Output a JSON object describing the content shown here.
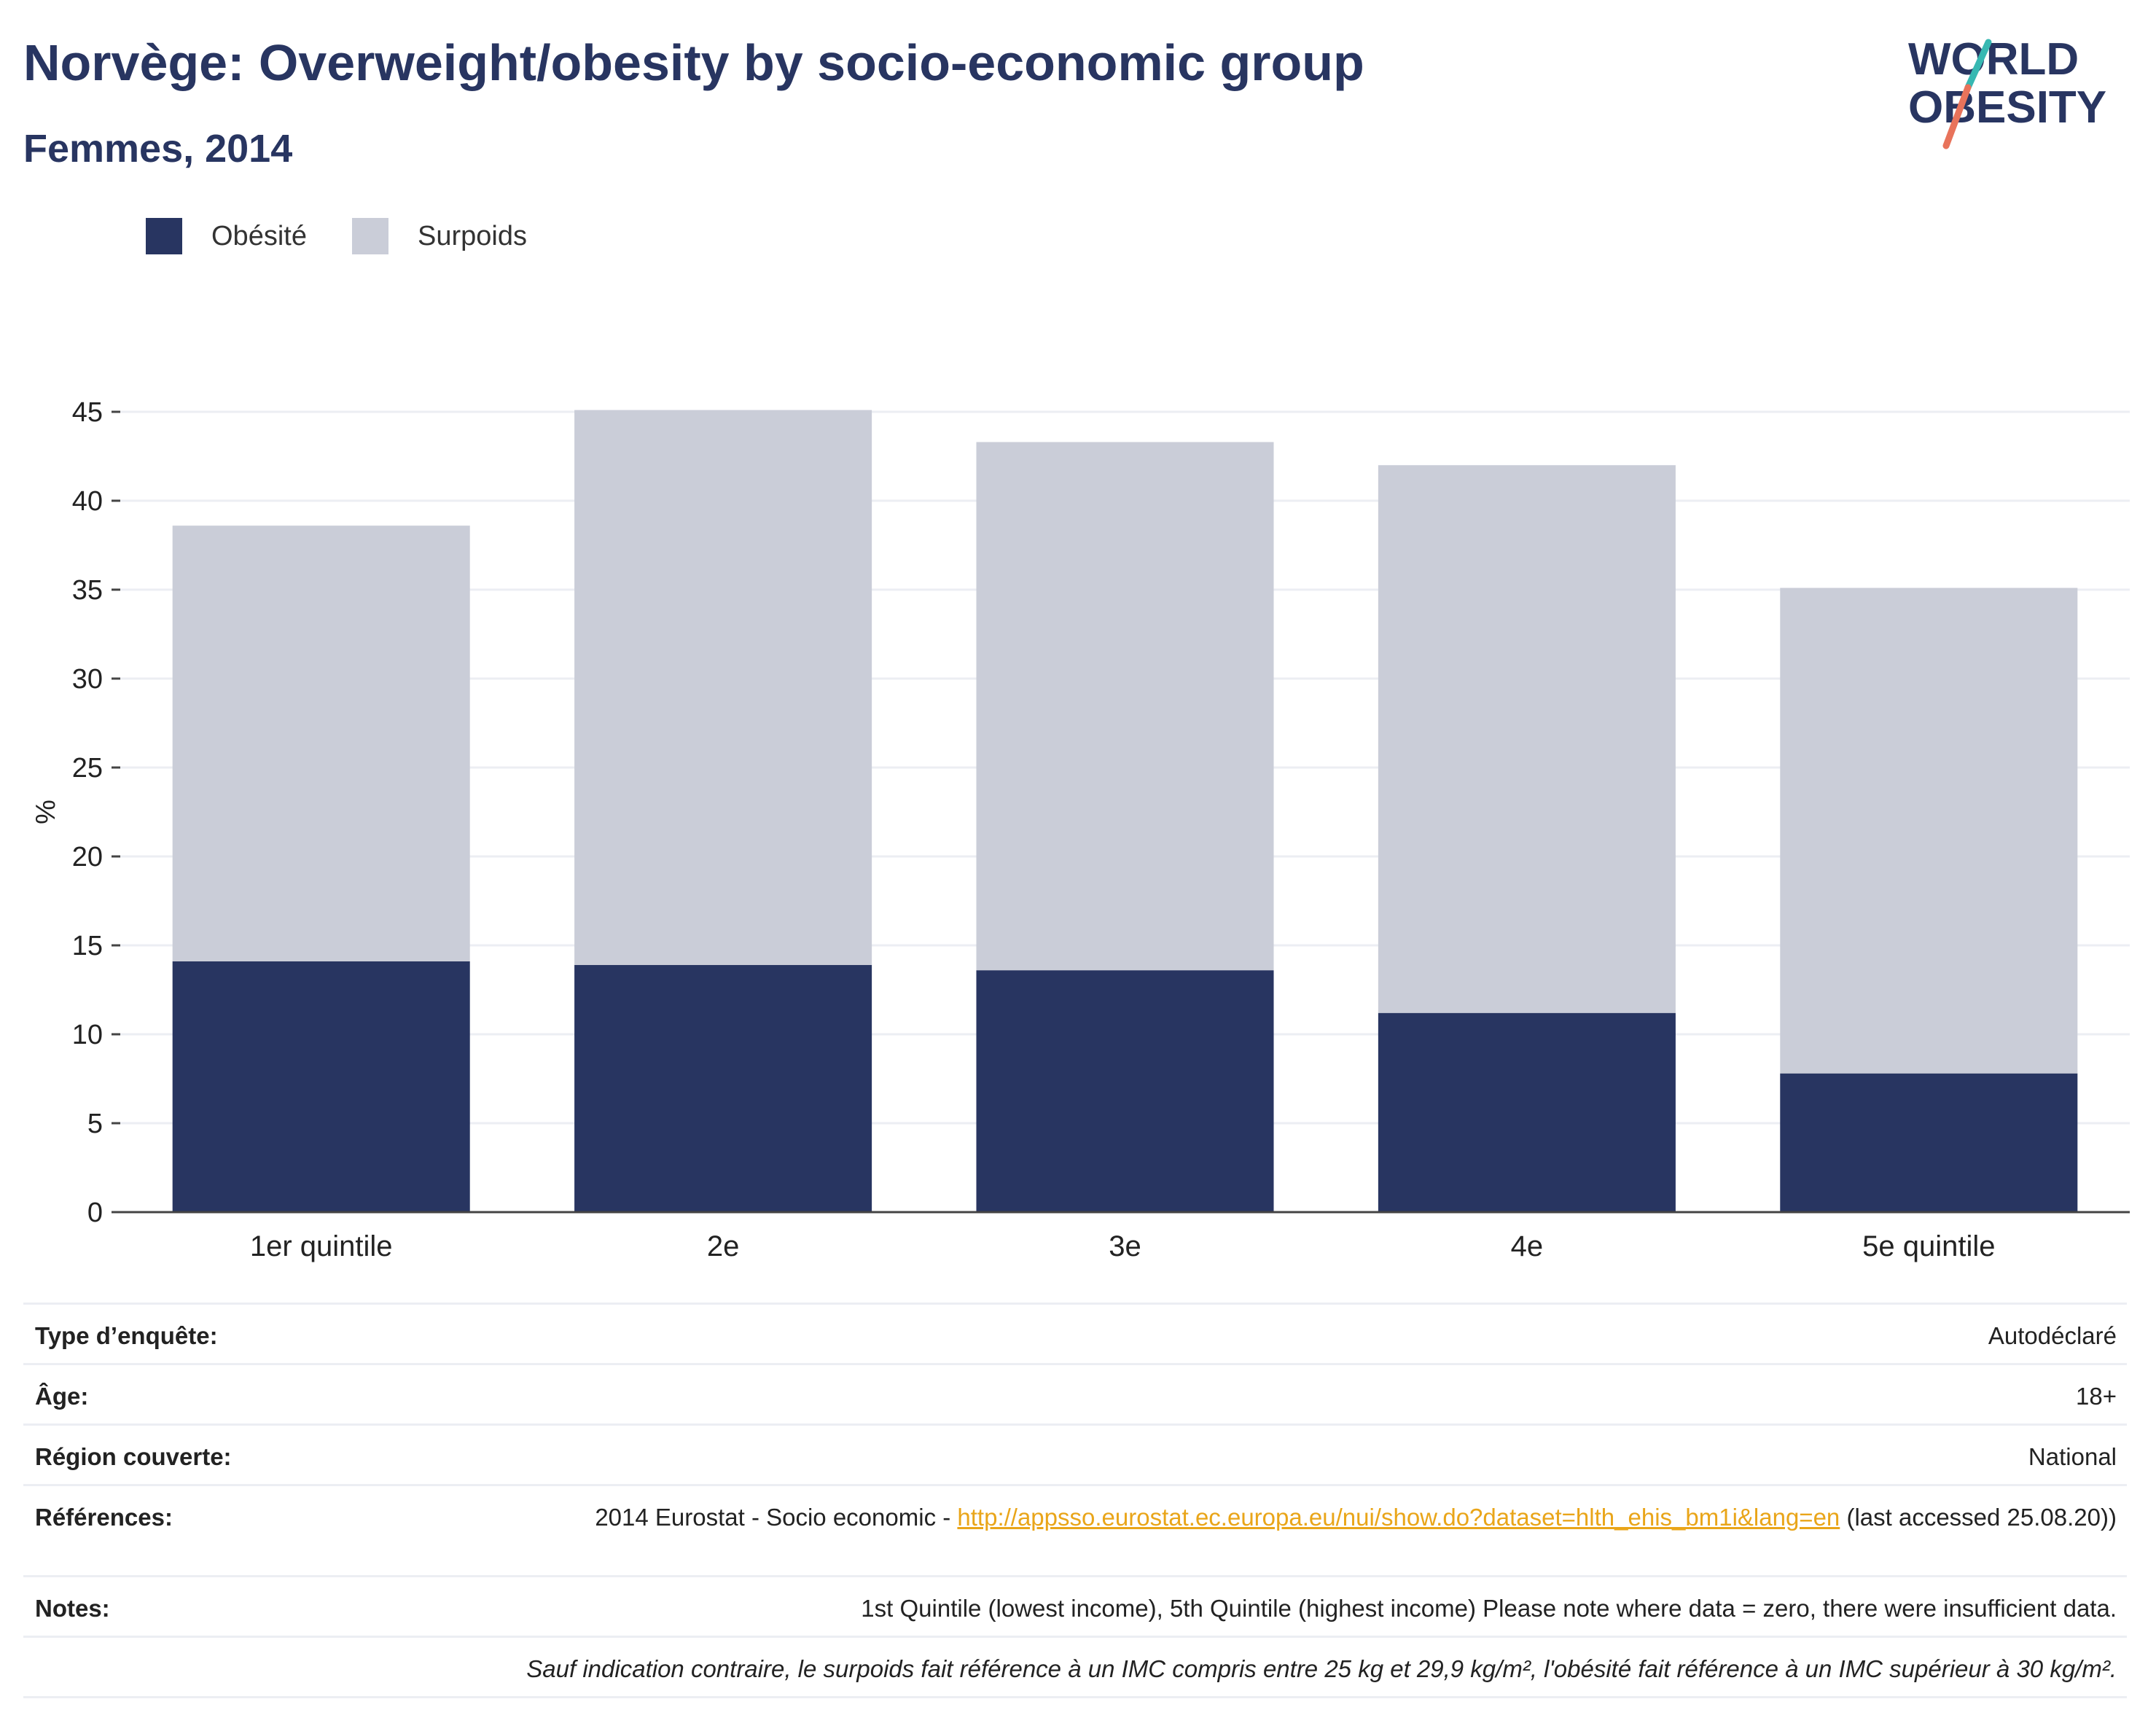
{
  "header": {
    "title": "Norvège: Overweight/obesity by socio-economic group",
    "subtitle": "Femmes, 2014"
  },
  "logo": {
    "line1": "WORLD",
    "line2": "OBESITY",
    "accent_color": "#37b8b2",
    "slash_color": "#e8735b"
  },
  "colors": {
    "obesite": "#283561",
    "surpoids": "#cacdd8",
    "text_dark": "#283561",
    "link": "#e9a519"
  },
  "chart_data": {
    "type": "bar",
    "stacked": true,
    "categories": [
      "1er quintile",
      "2e",
      "3e",
      "4e",
      "5e quintile"
    ],
    "series": [
      {
        "name": "Obésité",
        "values": [
          14.1,
          13.9,
          13.6,
          11.2,
          7.8
        ]
      },
      {
        "name": "Surpoids",
        "values": [
          24.5,
          31.2,
          29.7,
          30.8,
          27.3
        ]
      }
    ],
    "ylabel": "%",
    "xlabel": "",
    "ylim": [
      0,
      45
    ],
    "yticks": [
      "0",
      "5",
      "10",
      "15",
      "20",
      "25",
      "30",
      "35",
      "40",
      "45"
    ],
    "grid": true,
    "legend_position": "top-left"
  },
  "info": [
    {
      "key": "Type d’enquête:",
      "value": "Autodéclaré"
    },
    {
      "key": "Âge:",
      "value": "18+"
    },
    {
      "key": "Région couverte:",
      "value": "National"
    },
    {
      "key": "Références:",
      "value_prefix": "2014 Eurostat - Socio economic - ",
      "link": "http://appsso.eurostat.ec.europa.eu/nui/show.do?dataset=hlth_ehis_bm1i&lang=en",
      "value_suffix": " (last accessed 25.08.20))"
    },
    {
      "key": "Notes:",
      "value": "1st Quintile (lowest income), 5th Quintile (highest income) Please note where data = zero, there were insufficient data."
    }
  ],
  "footnote": "Sauf indication contraire, le surpoids fait référence à un IMC compris entre 25 kg et 29,9 kg/m², l'obésité fait référence à un IMC supérieur à 30 kg/m²."
}
